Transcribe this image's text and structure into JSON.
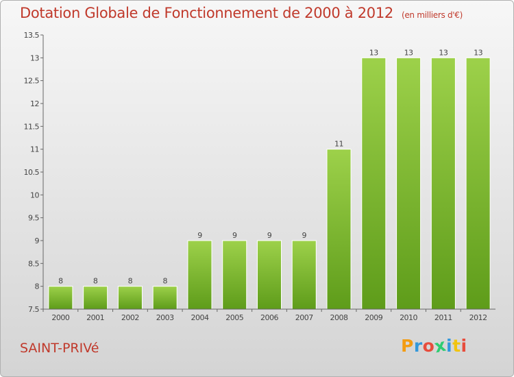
{
  "title": "Dotation Globale de Fonctionnement de 2000 à 2012",
  "unit": "(en milliers d'€)",
  "commune": "SAINT-PRIVé",
  "logo": {
    "letters": [
      "P",
      "r",
      "o",
      "x",
      "i",
      "t",
      "i"
    ],
    "colors": [
      "#f39c12",
      "#3498db",
      "#e74c3c",
      "#2ecc71",
      "#3498db",
      "#f1c40f",
      "#e74c3c"
    ]
  },
  "colors": {
    "bar_top": "#9dd14a",
    "bar_bottom": "#5e9c1a",
    "title": "#c0392b"
  },
  "chart_data": {
    "type": "bar",
    "categories": [
      "2000",
      "2001",
      "2002",
      "2003",
      "2004",
      "2005",
      "2006",
      "2007",
      "2008",
      "2009",
      "2010",
      "2011",
      "2012"
    ],
    "values": [
      8,
      8,
      8,
      8,
      9,
      9,
      9,
      9,
      11,
      13,
      13,
      13,
      13
    ],
    "data_labels": [
      "8",
      "8",
      "8",
      "8",
      "9",
      "9",
      "9",
      "9",
      "11",
      "13",
      "13",
      "13",
      "13"
    ],
    "yticks": [
      "7.5",
      "8",
      "8.5",
      "9",
      "9.5",
      "10",
      "10.5",
      "11",
      "11.5",
      "12",
      "12.5",
      "13",
      "13.5"
    ],
    "ylim": [
      7.5,
      13.5
    ],
    "grid": false,
    "legend": "none"
  }
}
